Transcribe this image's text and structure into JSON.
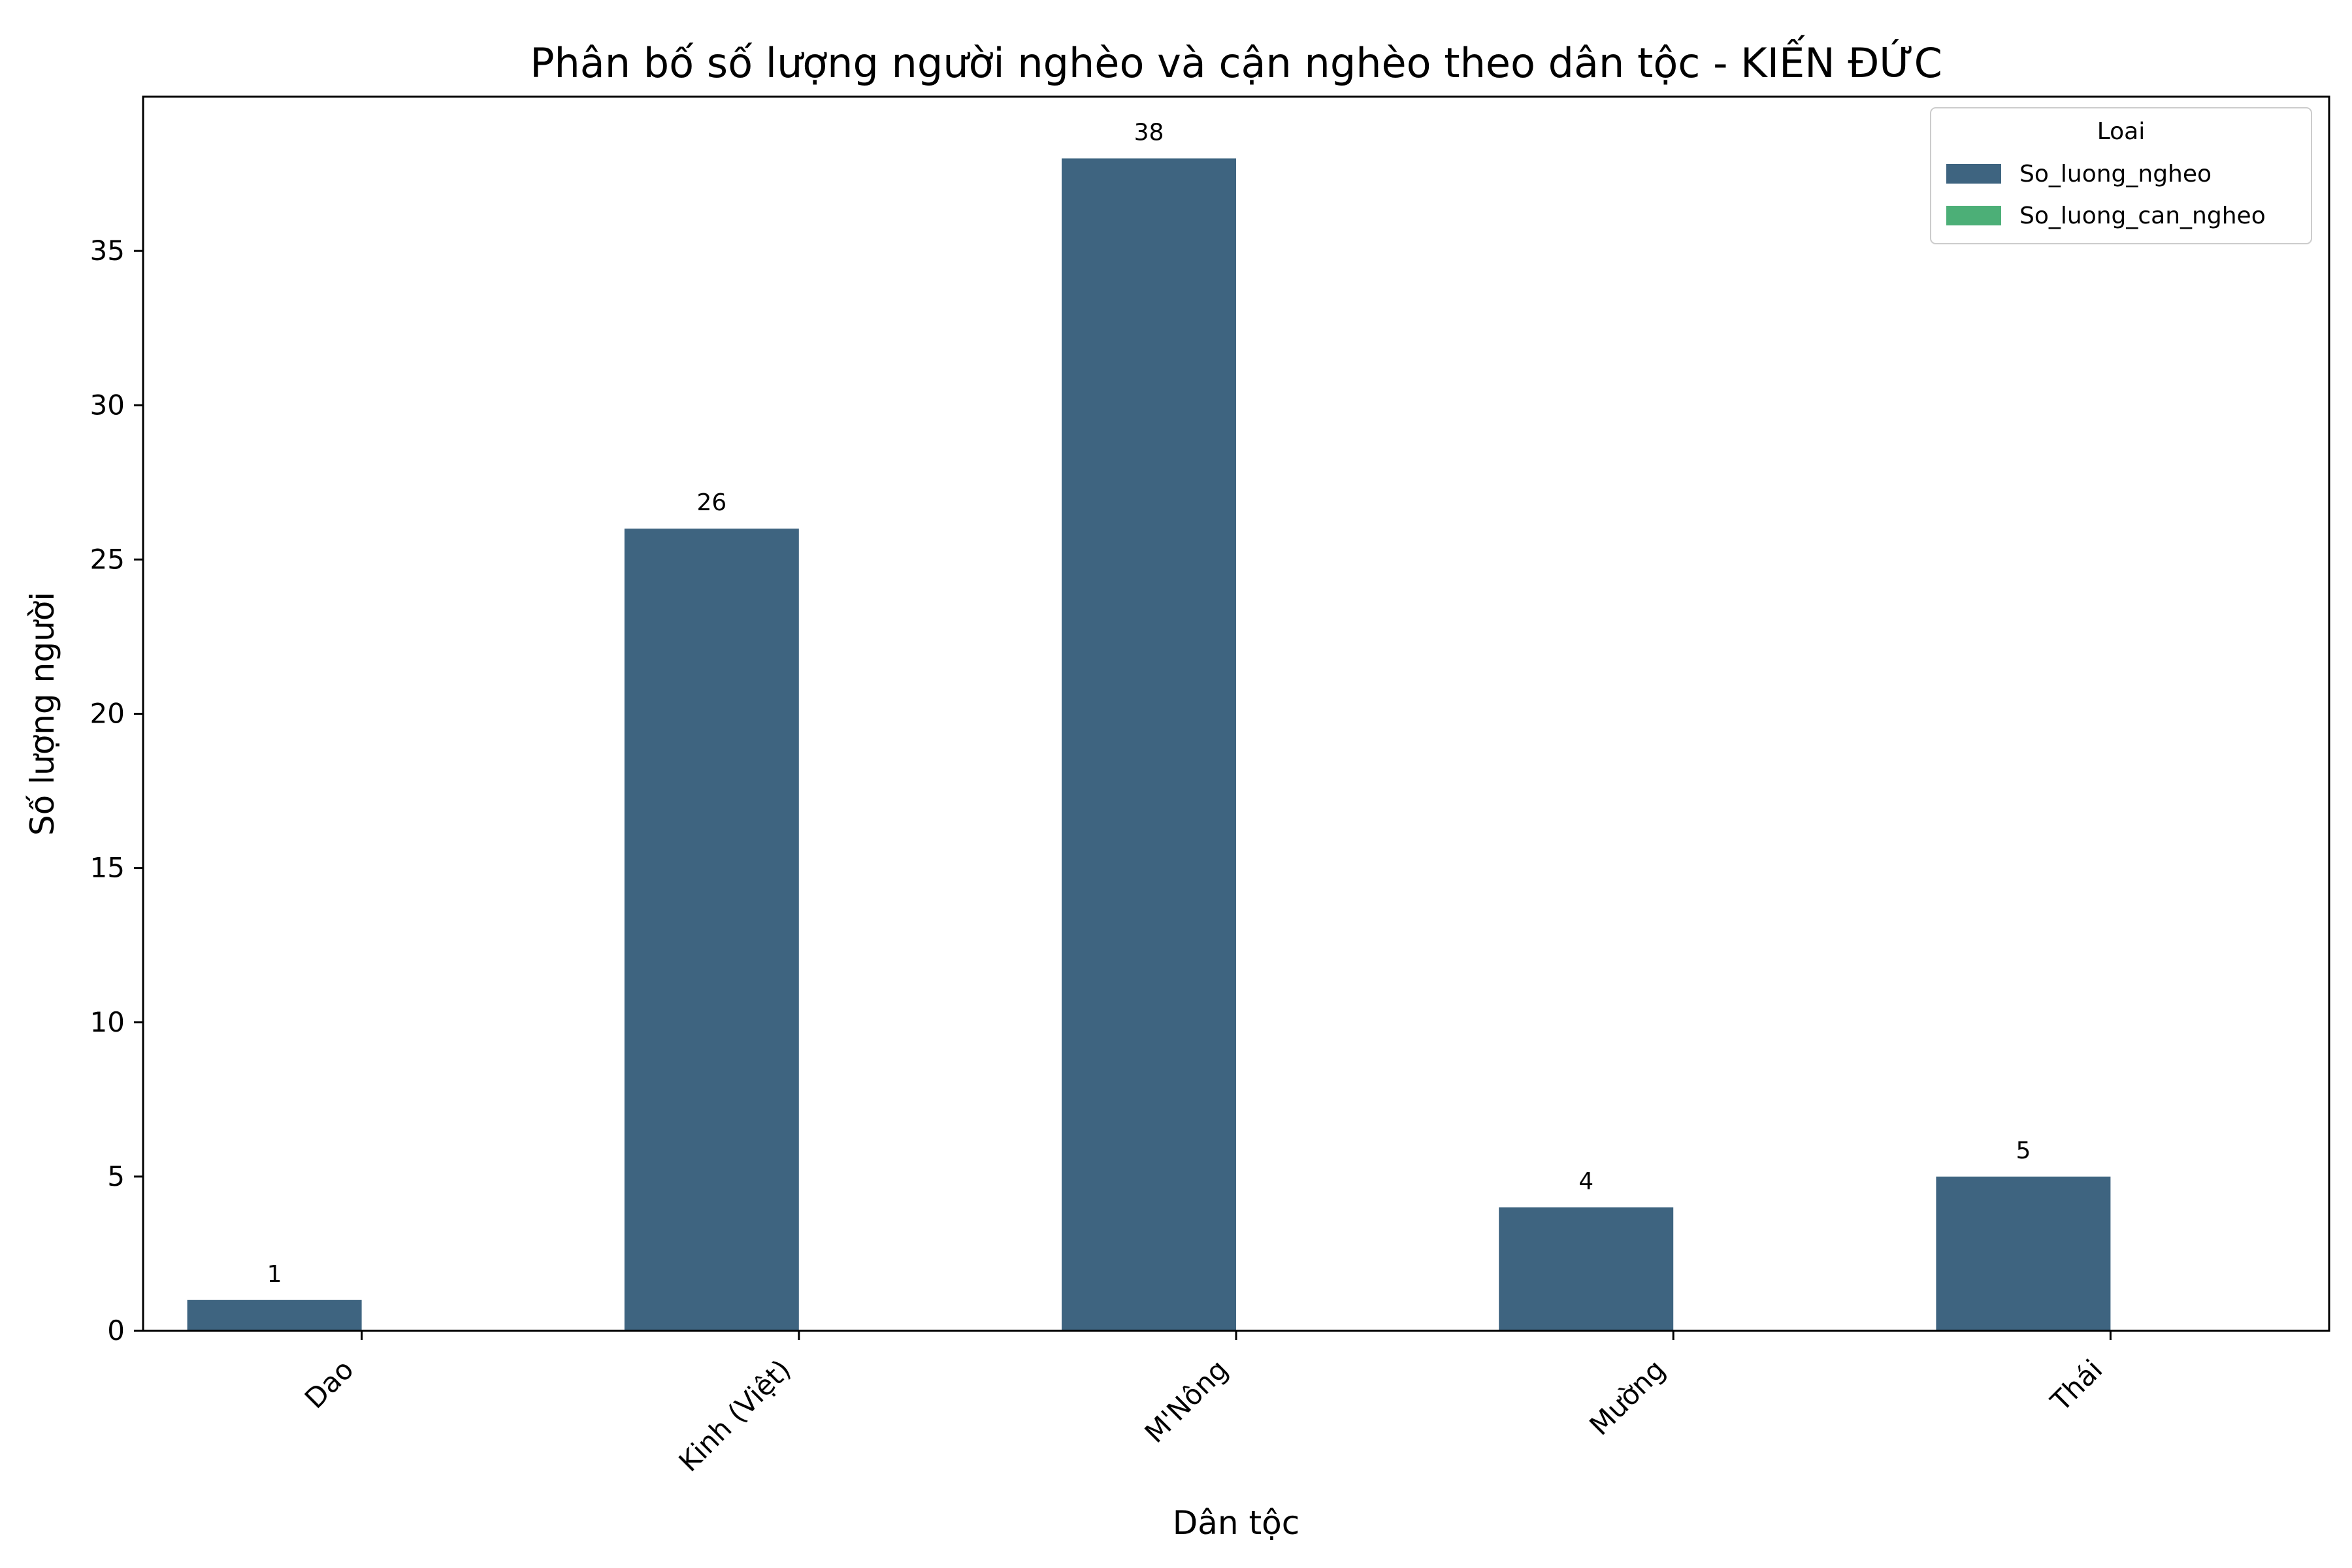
{
  "chart_data": {
    "type": "bar",
    "title": "Phân bố số lượng người nghèo và cận nghèo theo dân tộc - KIẾN ĐỨC",
    "xlabel": "Dân tộc",
    "ylabel": "Số lượng người",
    "categories": [
      "Dao",
      "Kinh (Việt)",
      "M'Nông",
      "Mường",
      "Thái"
    ],
    "series": [
      {
        "name": "So_luong_ngheo",
        "values": [
          1,
          26,
          38,
          4,
          5
        ],
        "color": "#3e6480"
      },
      {
        "name": "So_luong_can_ngheo",
        "values": [
          0,
          0,
          0,
          0,
          0
        ],
        "color": "#4caf77"
      }
    ],
    "data_labels": [
      "1",
      "26",
      "38",
      "4",
      "5"
    ],
    "ylim": [
      0,
      40
    ],
    "yticks": [
      0,
      5,
      10,
      15,
      20,
      25,
      30,
      35
    ],
    "grid": false,
    "legend": {
      "title": "Loai",
      "placement": "top-right"
    }
  }
}
